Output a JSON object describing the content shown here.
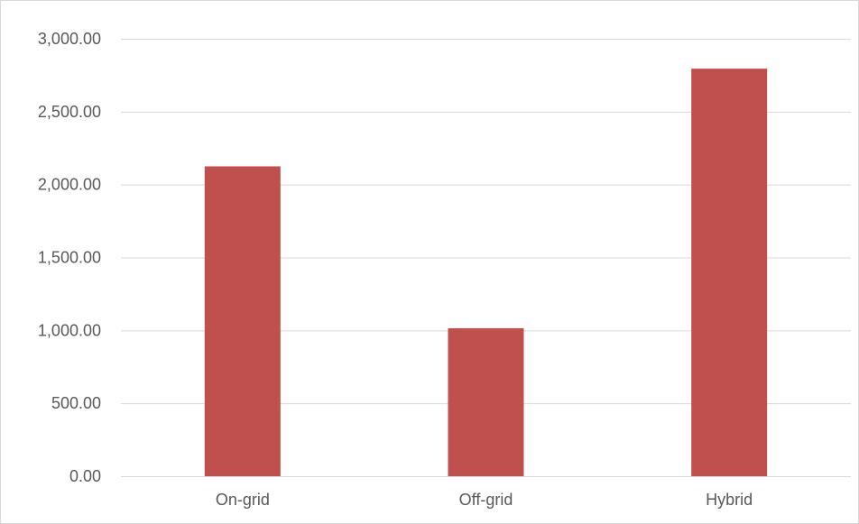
{
  "chart_data": {
    "type": "bar",
    "categories": [
      "On-grid",
      "Off-grid",
      "Hybrid"
    ],
    "series": [
      {
        "values": [
          2125,
          1015,
          2795
        ]
      }
    ],
    "y_ticks": [
      "0.00",
      "500.00",
      "1,000.00",
      "1,500.00",
      "2,000.00",
      "2,500.00",
      "3,000.00"
    ],
    "ylim": [
      0,
      3000
    ],
    "y_tick_step": 500,
    "grid": true,
    "legend": "none",
    "colors": {
      "bar": "#c0504d",
      "gridline": "#d9d9d9",
      "tick_text": "#595959"
    }
  }
}
